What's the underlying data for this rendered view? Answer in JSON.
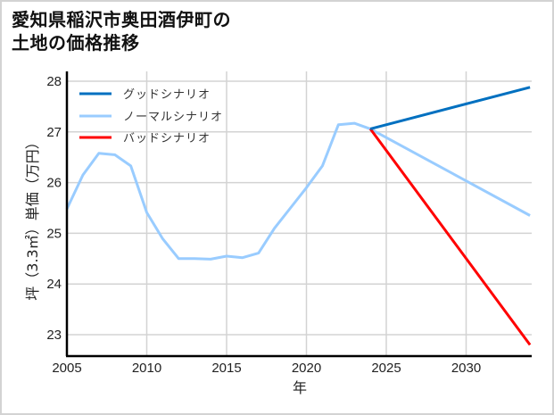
{
  "title_line1": "愛知県稲沢市奥田酒伊町の",
  "title_line2": "土地の価格推移",
  "colors": {
    "good": "#0070c0",
    "normal": "#99ccff",
    "bad": "#ff0000",
    "grid": "#d3d3d3",
    "axis": "#000000"
  },
  "chart_data": {
    "type": "line",
    "title": "愛知県稲沢市奥田酒伊町の土地の価格推移",
    "xlabel": "年",
    "ylabel": "坪（3.3㎡）単価（万円）",
    "xlim": [
      2005,
      2034
    ],
    "ylim": [
      22.6,
      28.15
    ],
    "x_ticks": [
      "2005",
      "2010",
      "2015",
      "2020",
      "2025",
      "2030"
    ],
    "y_ticks": [
      "23",
      "24",
      "25",
      "26",
      "27",
      "28"
    ],
    "grid": true,
    "legend_position": "upper left",
    "legend": [
      "グッドシナリオ",
      "ノーマルシナリオ",
      "バッドシナリオ"
    ],
    "series": [
      {
        "name": "ノーマルシナリオ (実績)",
        "x": [
          2005,
          2006,
          2007,
          2008,
          2009,
          2010,
          2011,
          2012,
          2013,
          2014,
          2015,
          2016,
          2017,
          2018,
          2019,
          2020,
          2021,
          2022,
          2023,
          2024
        ],
        "values": [
          25.48,
          26.15,
          26.58,
          26.55,
          26.33,
          25.41,
          24.89,
          24.5,
          24.5,
          24.49,
          24.55,
          24.52,
          24.61,
          25.1,
          25.5,
          25.9,
          26.33,
          27.14,
          27.17,
          27.06
        ]
      },
      {
        "name": "グッドシナリオ",
        "x": [
          2024,
          2034
        ],
        "values": [
          27.06,
          27.88
        ]
      },
      {
        "name": "ノーマルシナリオ",
        "x": [
          2024,
          2034
        ],
        "values": [
          27.06,
          25.35
        ]
      },
      {
        "name": "バッドシナリオ",
        "x": [
          2024,
          2034
        ],
        "values": [
          27.06,
          22.8
        ]
      }
    ]
  }
}
